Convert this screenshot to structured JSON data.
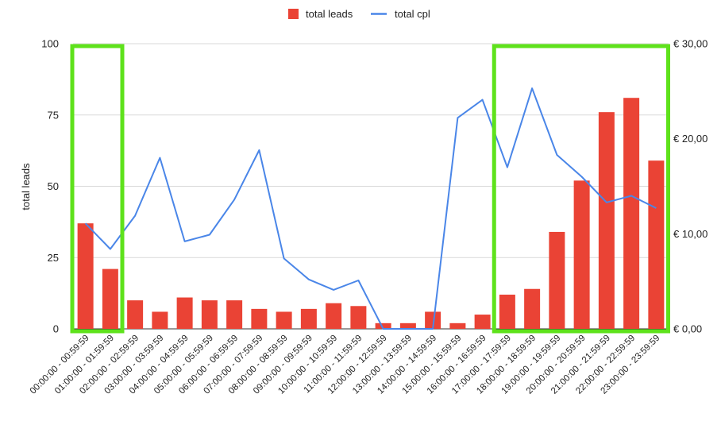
{
  "chart_data": {
    "type": "bar",
    "ylabel": "total leads",
    "ylim": [
      0,
      100
    ],
    "y2lim": [
      0,
      30
    ],
    "y_ticks": [
      "0",
      "25",
      "50",
      "75",
      "100"
    ],
    "y2_ticks": [
      "€ 0,00",
      "€ 10,00",
      "€ 20,00",
      "€ 30,00"
    ],
    "legend_position": "top-center",
    "grid": true,
    "categories": [
      "00:00:00 - 00:59:59",
      "01:00:00 - 01:59:59",
      "02:00:00 - 02:59:59",
      "03:00:00 - 03:59:59",
      "04:00:00 - 04:59:59",
      "05:00:00 - 05:59:59",
      "06:00:00 - 06:59:59",
      "07:00:00 - 07:59:59",
      "08:00:00 - 08:59:59",
      "09:00:00 - 09:59:59",
      "10:00:00 - 10:59:59",
      "11:00:00 - 11:59:59",
      "12:00:00 - 12:59:59",
      "13:00:00 - 13:59:59",
      "14:00:00 - 14:59:59",
      "15:00:00 - 15:59:59",
      "16:00:00 - 16:59:59",
      "17:00:00 - 17:59:59",
      "18:00:00 - 18:59:59",
      "19:00:00 - 19:59:59",
      "20:00:00 - 20:59:59",
      "21:00:00 - 21:59:59",
      "22:00:00 - 22:59:59",
      "23:00:00 - 23:59:59"
    ],
    "series": [
      {
        "name": "total leads",
        "type": "bar",
        "axis": "left",
        "color": "#ea4335",
        "values": [
          37,
          21,
          10,
          6,
          11,
          10,
          10,
          7,
          6,
          7,
          9,
          8,
          2,
          2,
          6,
          2,
          5,
          12,
          14,
          34,
          52,
          76,
          81,
          59
        ]
      },
      {
        "name": "total cpl",
        "type": "line",
        "axis": "right",
        "color": "#4a86e8",
        "values": [
          11.1,
          8.4,
          11.9,
          18.0,
          9.2,
          9.9,
          13.6,
          18.8,
          7.4,
          5.2,
          4.1,
          5.1,
          0,
          0,
          0,
          22.2,
          24.1,
          17.0,
          25.3,
          18.3,
          16.0,
          13.3,
          14.0,
          12.7
        ]
      }
    ],
    "highlight_boxes": {
      "color": "#5ee21b",
      "ranges": [
        [
          0,
          1
        ],
        [
          17,
          23
        ]
      ]
    }
  }
}
